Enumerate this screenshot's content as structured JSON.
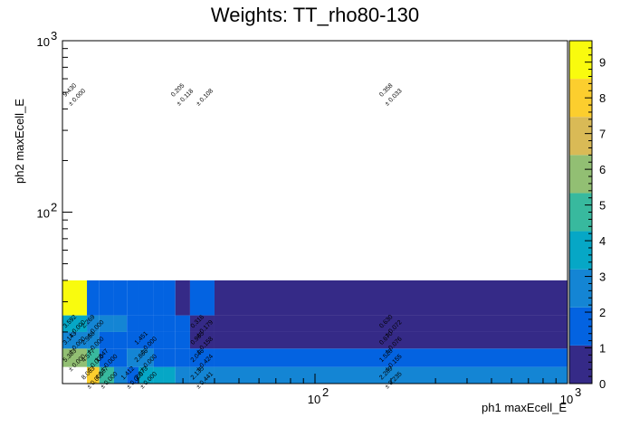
{
  "chart_data": {
    "type": "heatmap",
    "title": "Weights: TT_rho80-130",
    "xlabel": "ph1 maxEcell_E",
    "ylabel": "ph2 maxEcell_E",
    "x_scale": "log",
    "y_scale": "log",
    "xlim": [
      10,
      1000
    ],
    "ylim": [
      10,
      1000
    ],
    "x_ticks": [
      {
        "value": 100,
        "base": "10",
        "exp": "2"
      },
      {
        "value": 1000,
        "base": "10",
        "exp": "3"
      }
    ],
    "y_ticks": [
      {
        "value": 100,
        "base": "10",
        "exp": "2"
      },
      {
        "value": 1000,
        "base": "10",
        "exp": "3"
      }
    ],
    "x_edges": [
      10,
      12.5,
      14,
      16,
      18,
      20,
      23,
      25,
      28,
      32,
      40,
      1000
    ],
    "y_edges": [
      10,
      12.5,
      16,
      20,
      25,
      40,
      1000
    ],
    "zlim": [
      0,
      9.6
    ],
    "z_ticks": [
      0,
      1,
      2,
      3,
      4,
      5,
      6,
      7,
      8,
      9
    ],
    "palette": [
      "#352a87",
      "#0363e1",
      "#1485d4",
      "#06a7c6",
      "#38b99e",
      "#92bf73",
      "#d9ba56",
      "#fcce2e",
      "#f9fb0e"
    ],
    "cells": [
      {
        "col": 1,
        "row": 0,
        "value": 8.063,
        "label": "8.063",
        "err": "± 0.000"
      },
      {
        "col": 2,
        "row": 0,
        "value": 4.587,
        "label": "4.587",
        "err": "± 0.000"
      },
      {
        "col": 3,
        "row": 0,
        "value": 2.6,
        "label": "",
        "err": ""
      },
      {
        "col": 4,
        "row": 0,
        "value": 1.412,
        "label": "1.412",
        "err": "± 0.000"
      },
      {
        "col": 5,
        "row": 0,
        "value": 3.873,
        "label": "3.873",
        "err": "± 0.000"
      },
      {
        "col": 6,
        "row": 0,
        "value": 3.4,
        "label": "",
        "err": ""
      },
      {
        "col": 7,
        "row": 0,
        "value": 3.2,
        "label": "",
        "err": ""
      },
      {
        "col": 8,
        "row": 0,
        "value": 3.1,
        "label": "",
        "err": ""
      },
      {
        "col": 9,
        "row": 0,
        "value": 2.135,
        "label": "2.135",
        "err": "± 0.441"
      },
      {
        "col": 10,
        "row": 0,
        "value": 2.289,
        "label": "2.289",
        "err": "± 0.235"
      },
      {
        "col": 0,
        "row": 1,
        "value": 5.383,
        "label": "5.383",
        "err": "± 0.000"
      },
      {
        "col": 1,
        "row": 1,
        "value": 4.577,
        "label": "4.577",
        "err": "± 0.000"
      },
      {
        "col": 2,
        "row": 1,
        "value": 1.847,
        "label": "1.847",
        "err": "± 0.000"
      },
      {
        "col": 3,
        "row": 1,
        "value": 1.5,
        "label": "",
        "err": ""
      },
      {
        "col": 4,
        "row": 1,
        "value": 2.8,
        "label": "",
        "err": ""
      },
      {
        "col": 5,
        "row": 1,
        "value": 2.866,
        "label": "2.866",
        "err": "± 0.000"
      },
      {
        "col": 6,
        "row": 1,
        "value": 1.8,
        "label": "",
        "err": ""
      },
      {
        "col": 7,
        "row": 1,
        "value": 1.7,
        "label": "",
        "err": ""
      },
      {
        "col": 8,
        "row": 1,
        "value": 1.6,
        "label": "",
        "err": ""
      },
      {
        "col": 9,
        "row": 1,
        "value": 2.046,
        "label": "2.046",
        "err": "± 0.424"
      },
      {
        "col": 10,
        "row": 1,
        "value": 1.528,
        "label": "1.528",
        "err": "± 0.155"
      },
      {
        "col": 0,
        "row": 2,
        "value": 3.143,
        "label": "3.143",
        "err": "± 0.000"
      },
      {
        "col": 1,
        "row": 2,
        "value": 2.958,
        "label": "2.958",
        "err": "± 0.000"
      },
      {
        "col": 2,
        "row": 2,
        "value": 2.1,
        "label": "",
        "err": ""
      },
      {
        "col": 3,
        "row": 2,
        "value": 2.0,
        "label": "",
        "err": ""
      },
      {
        "col": 4,
        "row": 2,
        "value": 1.9,
        "label": "",
        "err": ""
      },
      {
        "col": 5,
        "row": 2,
        "value": 1.451,
        "label": "1.451",
        "err": "± 0.000"
      },
      {
        "col": 6,
        "row": 2,
        "value": 1.7,
        "label": "",
        "err": ""
      },
      {
        "col": 7,
        "row": 2,
        "value": 1.6,
        "label": "",
        "err": ""
      },
      {
        "col": 8,
        "row": 2,
        "value": 1.5,
        "label": "",
        "err": ""
      },
      {
        "col": 9,
        "row": 2,
        "value": 0.965,
        "label": "0.965",
        "err": "± 0.158"
      },
      {
        "col": 10,
        "row": 2,
        "value": 0.67,
        "label": "0.670",
        "err": "± 0.076"
      },
      {
        "col": 0,
        "row": 3,
        "value": 3.592,
        "label": "3.592",
        "err": "± 0.000"
      },
      {
        "col": 1,
        "row": 3,
        "value": 2.269,
        "label": "2.269",
        "err": "± 0.000"
      },
      {
        "col": 2,
        "row": 3,
        "value": 2.5,
        "label": "",
        "err": ""
      },
      {
        "col": 3,
        "row": 3,
        "value": 2.2,
        "label": "",
        "err": ""
      },
      {
        "col": 4,
        "row": 3,
        "value": 1.6,
        "label": "",
        "err": ""
      },
      {
        "col": 5,
        "row": 3,
        "value": 1.5,
        "label": "",
        "err": ""
      },
      {
        "col": 6,
        "row": 3,
        "value": 1.4,
        "label": "",
        "err": ""
      },
      {
        "col": 7,
        "row": 3,
        "value": 1.3,
        "label": "",
        "err": ""
      },
      {
        "col": 8,
        "row": 3,
        "value": 1.2,
        "label": "",
        "err": ""
      },
      {
        "col": 9,
        "row": 3,
        "value": 0.316,
        "label": "0.316",
        "err": "± 0.179"
      },
      {
        "col": 10,
        "row": 3,
        "value": 0.63,
        "label": "0.630",
        "err": "± 0.072"
      },
      {
        "col": 0,
        "row": 4,
        "value": 9.43,
        "label": "9.430",
        "err": "± 0.000"
      },
      {
        "col": 1,
        "row": 4,
        "value": 1.2,
        "label": "",
        "err": ""
      },
      {
        "col": 2,
        "row": 4,
        "value": 1.2,
        "label": "",
        "err": ""
      },
      {
        "col": 3,
        "row": 4,
        "value": 1.2,
        "label": "",
        "err": ""
      },
      {
        "col": 4,
        "row": 4,
        "value": 1.2,
        "label": "",
        "err": ""
      },
      {
        "col": 5,
        "row": 4,
        "value": 1.2,
        "label": "",
        "err": ""
      },
      {
        "col": 6,
        "row": 4,
        "value": 1.1,
        "label": "",
        "err": ""
      },
      {
        "col": 7,
        "row": 4,
        "value": 1.1,
        "label": "",
        "err": ""
      },
      {
        "col": 8,
        "row": 4,
        "value": 0.205,
        "label": "0.205",
        "err": "± 0.118"
      },
      {
        "col": 9,
        "row": 4,
        "value": 1.1,
        "label": "",
        "err": "± 0.108"
      },
      {
        "col": 10,
        "row": 4,
        "value": 0.358,
        "label": "0.358",
        "err": "± 0.033"
      }
    ]
  }
}
